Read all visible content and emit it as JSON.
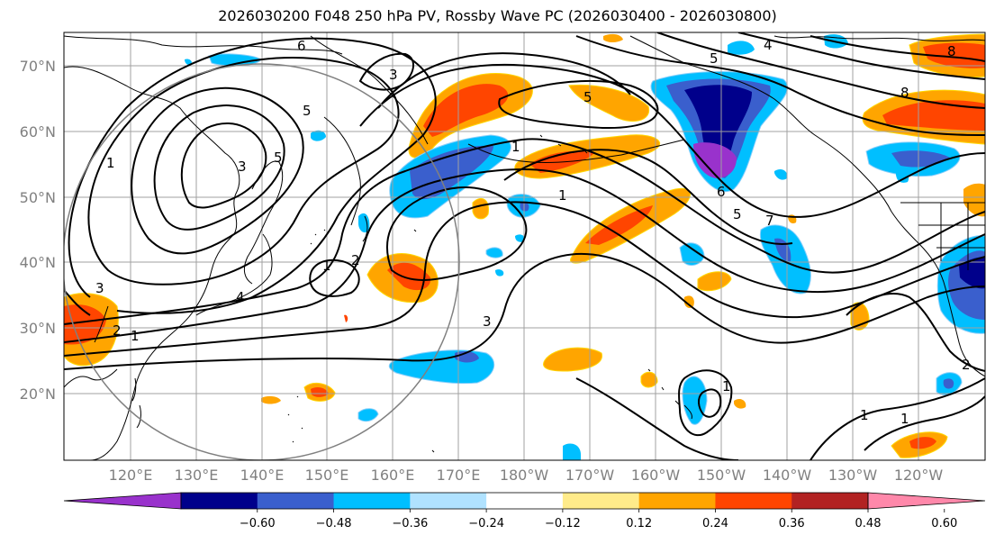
{
  "title": "2026030200 F048 250 hPa PV, Rossby Wave PC (2026030400 - 2026030800)",
  "latitude_labels": [
    "70°N",
    "60°N",
    "50°N",
    "40°N",
    "30°N",
    "20°N"
  ],
  "longitude_labels": [
    "120°E",
    "130°E",
    "140°E",
    "150°E",
    "160°E",
    "170°E",
    "180°W",
    "170°W",
    "160°W",
    "150°W",
    "140°W",
    "130°W",
    "120°W"
  ],
  "colorbar": {
    "tick_labels": [
      "−0.60",
      "−0.48",
      "−0.36",
      "−0.24",
      "−0.12",
      "0.12",
      "0.24",
      "0.36",
      "0.48",
      "0.60"
    ],
    "colors": [
      "#9932cc",
      "#00008b",
      "#3a5fcd",
      "#00bfff",
      "#b0e2ff",
      "#ffffff",
      "#ffeb8a",
      "#ffa500",
      "#ff4500",
      "#b22222",
      "#ff88aa"
    ]
  },
  "contour_labels": [
    "6",
    "4",
    "5",
    "3",
    "8",
    "8",
    "5",
    "5",
    "1",
    "3",
    "5",
    "1",
    "1",
    "6",
    "5",
    "7",
    "1",
    "2",
    "3",
    "4",
    "2",
    "1",
    "3",
    "1",
    "1",
    "1",
    "2"
  ],
  "colors": {
    "contour": "#000000",
    "grid": "#a0a0a0",
    "coast": "#000000",
    "radius_circle": "#808080",
    "positive_outline": "#ffd700",
    "negative_outline": "#87cefa"
  }
}
